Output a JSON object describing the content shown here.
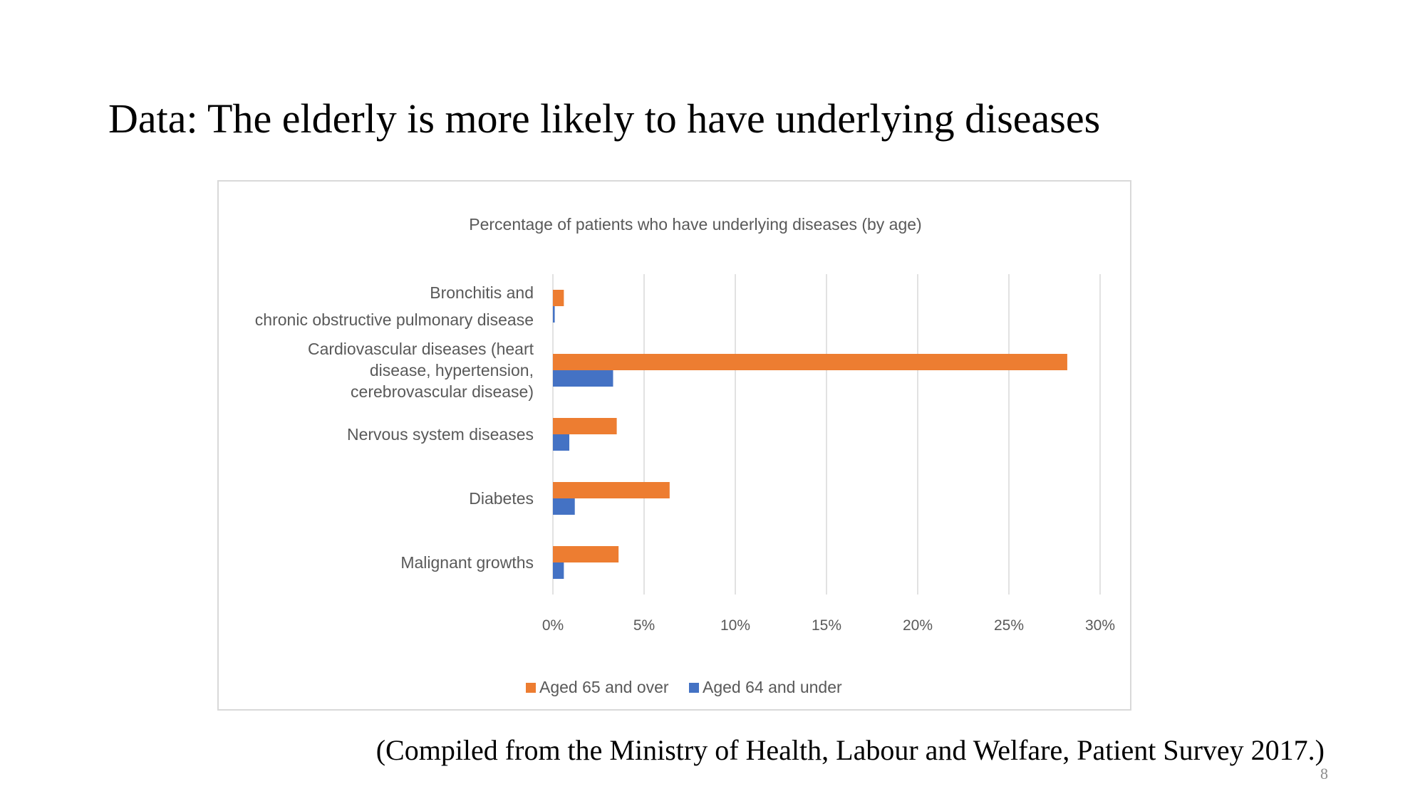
{
  "slide": {
    "title": "Data: The elderly is more likely to have underlying diseases",
    "source": "(Compiled from the Ministry of Health, Labour and Welfare, Patient Survey 2017.)",
    "page_number": "8"
  },
  "colors": {
    "aged_65_over": "#ED7D31",
    "aged_64_under": "#4472C4",
    "gridline": "#D9D9D9",
    "label_text": "#595959"
  },
  "chart_data": {
    "type": "bar",
    "orientation": "horizontal",
    "title": "Percentage of patients who have underlying diseases (by age)",
    "xlabel": "",
    "ylabel": "",
    "categories": [
      "Bronchitis and chronic obstructive pulmonary disease",
      "Cardiovascular diseases (heart disease, hypertension, cerebrovascular disease)",
      "Nervous system diseases",
      "Diabetes",
      "Malignant growths"
    ],
    "category_label_lines": [
      [
        "Bronchitis and",
        "chronic obstructive pulmonary disease"
      ],
      [
        "Cardiovascular diseases (heart",
        "disease, hypertension,",
        "cerebrovascular disease)"
      ],
      [
        "Nervous system diseases"
      ],
      [
        "Diabetes"
      ],
      [
        "Malignant growths"
      ]
    ],
    "series": [
      {
        "name": "Aged 65 and over",
        "color": "#ED7D31",
        "values": [
          0.6,
          28.2,
          3.5,
          6.4,
          3.6
        ]
      },
      {
        "name": "Aged 64 and under",
        "color": "#4472C4",
        "values": [
          0.1,
          3.3,
          0.9,
          1.2,
          0.6
        ]
      }
    ],
    "xlim": [
      0,
      30
    ],
    "xticks": [
      0,
      5,
      10,
      15,
      20,
      25,
      30
    ],
    "tick_labels": [
      "0%",
      "5%",
      "10%",
      "15%",
      "20%",
      "25%",
      "30%"
    ],
    "grid": true,
    "legend_position": "bottom"
  }
}
